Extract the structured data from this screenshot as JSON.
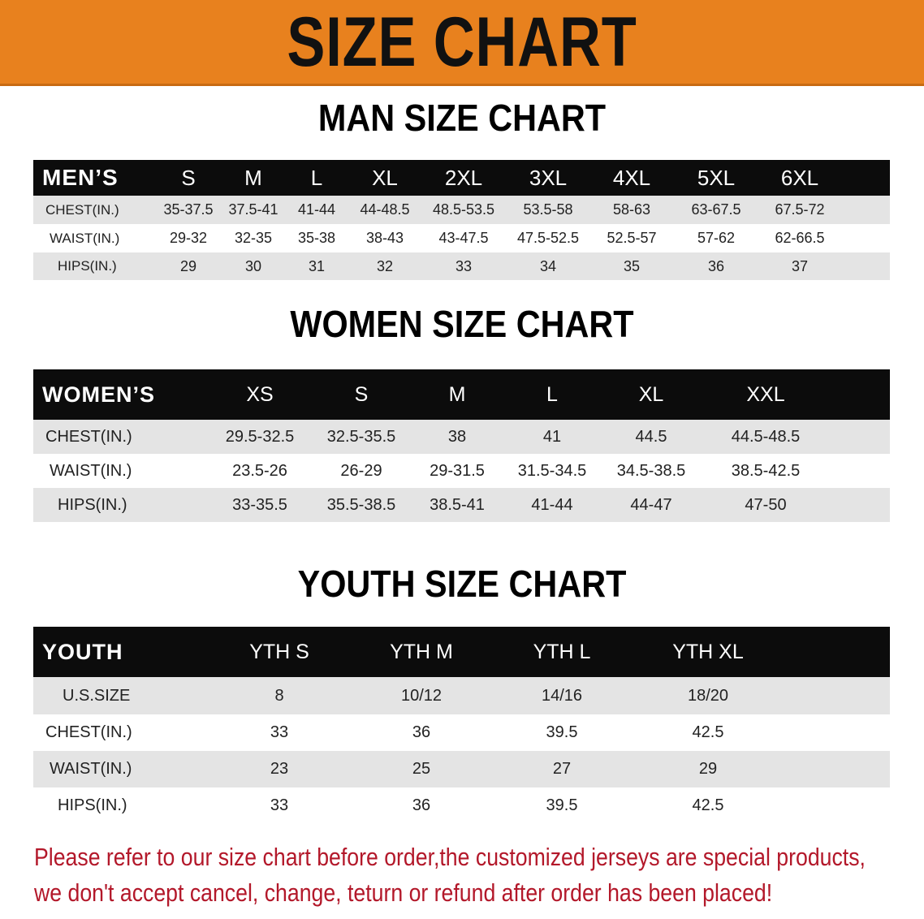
{
  "banner": {
    "title": "SIZE CHART",
    "color": "#E8811E"
  },
  "men": {
    "title": "MAN SIZE CHART",
    "header_label": "MEN’S",
    "sizes": [
      "S",
      "M",
      "L",
      "XL",
      "2XL",
      "3XL",
      "4XL",
      "5XL",
      "6XL"
    ],
    "rows": [
      {
        "label": "CHEST(IN.)",
        "values": [
          "35-37.5",
          "37.5-41",
          "41-44",
          "44-48.5",
          "48.5-53.5",
          "53.5-58",
          "58-63",
          "63-67.5",
          "67.5-72"
        ]
      },
      {
        "label": "WAIST(IN.)",
        "values": [
          "29-32",
          "32-35",
          "35-38",
          "38-43",
          "43-47.5",
          "47.5-52.5",
          "52.5-57",
          "57-62",
          "62-66.5"
        ]
      },
      {
        "label": "HIPS(IN.)",
        "values": [
          "29",
          "30",
          "31",
          "32",
          "33",
          "34",
          "35",
          "36",
          "37"
        ]
      }
    ]
  },
  "women": {
    "title": "WOMEN SIZE CHART",
    "header_label": "WOMEN’S",
    "sizes": [
      "XS",
      "S",
      "M",
      "L",
      "XL",
      "XXL"
    ],
    "rows": [
      {
        "label": "CHEST(IN.)",
        "values": [
          "29.5-32.5",
          "32.5-35.5",
          "38",
          "41",
          "44.5",
          "44.5-48.5"
        ]
      },
      {
        "label": "WAIST(IN.)",
        "values": [
          "23.5-26",
          "26-29",
          "29-31.5",
          "31.5-34.5",
          "34.5-38.5",
          "38.5-42.5"
        ]
      },
      {
        "label": "HIPS(IN.)",
        "values": [
          "33-35.5",
          "35.5-38.5",
          "38.5-41",
          "41-44",
          "44-47",
          "47-50"
        ]
      }
    ]
  },
  "youth": {
    "title": "YOUTH SIZE CHART",
    "header_label": "YOUTH",
    "sizes": [
      "YTH S",
      "YTH M",
      "YTH L",
      "YTH XL"
    ],
    "rows": [
      {
        "label": "U.S.SIZE",
        "values": [
          "8",
          "10/12",
          "14/16",
          "18/20"
        ]
      },
      {
        "label": "CHEST(IN.)",
        "values": [
          "33",
          "36",
          "39.5",
          "42.5"
        ]
      },
      {
        "label": "WAIST(IN.)",
        "values": [
          "23",
          "25",
          "27",
          "29"
        ]
      },
      {
        "label": "HIPS(IN.)",
        "values": [
          "33",
          "36",
          "39.5",
          "42.5"
        ]
      }
    ]
  },
  "notice": {
    "line1": "Please refer to our size chart before order,the customized jerseys are special products,",
    "line2": "we don't accept cancel, change, teturn or refund after order has been placed!",
    "color": "#b3182a"
  }
}
